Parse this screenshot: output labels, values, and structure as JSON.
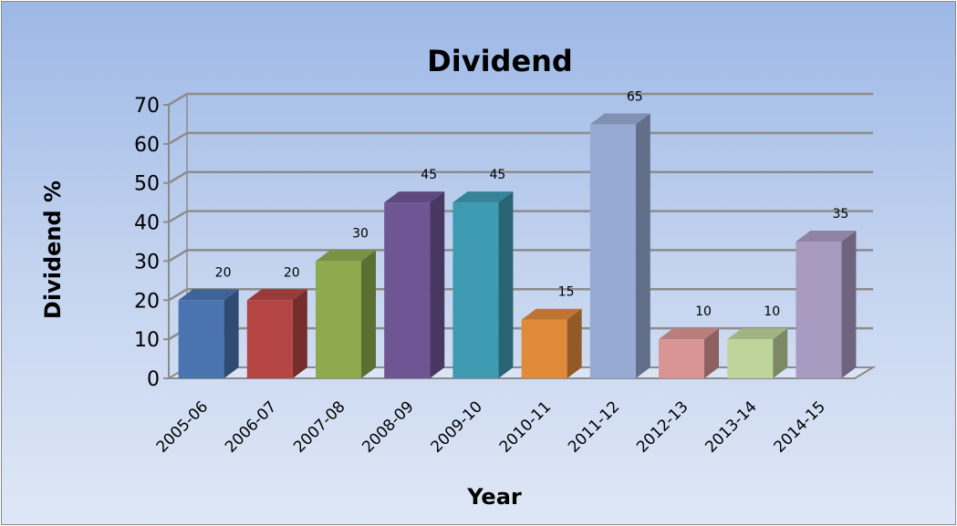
{
  "chart_data": {
    "type": "bar",
    "title": "Dividend",
    "xlabel": "Year",
    "ylabel": "Dividend %",
    "categories": [
      "2005-06",
      "2006-07",
      "2007-08",
      "2008-09",
      "2009-10",
      "2010-11",
      "2011-12",
      "2012-13",
      "2013-14",
      "2014-15"
    ],
    "values": [
      20,
      20,
      30,
      45,
      45,
      15,
      65,
      10,
      10,
      35
    ],
    "ylim": [
      0,
      70
    ],
    "yticks": [
      "0",
      "10",
      "20",
      "30",
      "40",
      "50",
      "60",
      "70"
    ],
    "data_labels": [
      "20",
      "20",
      "30",
      "45",
      "45",
      "15",
      "65",
      "10",
      "10",
      "35"
    ],
    "colors": [
      "#4a74b0",
      "#b44543",
      "#8eaa4f",
      "#6f5594",
      "#3e9ab1",
      "#e08a3a",
      "#97aad3",
      "#d99594",
      "#bdd49a",
      "#a99ac2"
    ],
    "grid": true,
    "legend": "none",
    "style": "3d-column"
  }
}
